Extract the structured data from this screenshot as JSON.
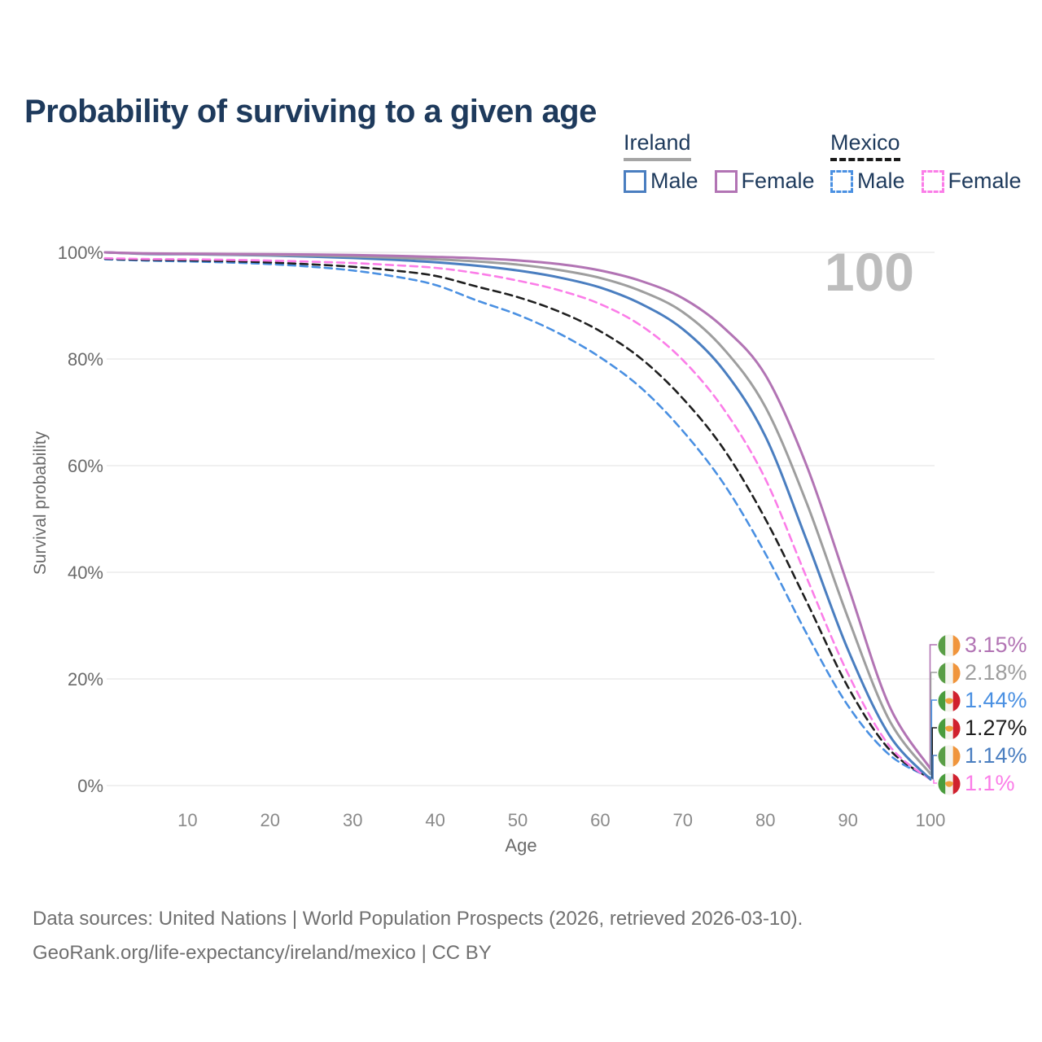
{
  "title": {
    "text": "Probability of surviving to a given age"
  },
  "watermark": {
    "text": "100"
  },
  "legend": {
    "groups": [
      {
        "label": "Ireland",
        "line_style": "solid",
        "underline_color": "#a5a5a5",
        "items": [
          {
            "label": "Male",
            "color": "#4a7ec0"
          },
          {
            "label": "Female",
            "color": "#b274b4"
          }
        ]
      },
      {
        "label": "Mexico",
        "line_style": "dashed",
        "underline_color": "#1a1a1a",
        "items": [
          {
            "label": "Male",
            "color": "#4a90e2"
          },
          {
            "label": "Female",
            "color": "#fb7de8"
          }
        ]
      }
    ]
  },
  "chart_data": {
    "type": "line",
    "title": "Probability of surviving to a given age",
    "xlabel": "Age",
    "ylabel": "Survival probability",
    "xlim": [
      0,
      100
    ],
    "ylim": [
      0,
      100
    ],
    "grid": "horizontal",
    "grid_color": "#e6e6e6",
    "x_ticks": [
      10,
      20,
      30,
      40,
      50,
      60,
      70,
      80,
      90,
      100
    ],
    "y_ticks": [
      {
        "value": 0,
        "label": "0%"
      },
      {
        "value": 20,
        "label": "20%"
      },
      {
        "value": 40,
        "label": "40%"
      },
      {
        "value": 60,
        "label": "60%"
      },
      {
        "value": 80,
        "label": "80%"
      },
      {
        "value": 100,
        "label": "100%"
      }
    ],
    "x": [
      0,
      5,
      10,
      15,
      20,
      25,
      30,
      35,
      40,
      45,
      50,
      55,
      60,
      65,
      70,
      75,
      80,
      85,
      90,
      95,
      100
    ],
    "series": [
      {
        "id": "mexico-male",
        "name": "Mexico Male",
        "country": "Mexico",
        "sex": "Male",
        "style": "dashed",
        "color": "#4a90e2",
        "end_value": 1.44,
        "end_label": "1.44%",
        "values": [
          98.7,
          98.45,
          98.3,
          98.1,
          97.8,
          97.3,
          96.6,
          95.5,
          93.9,
          91.0,
          88.3,
          84.8,
          80.3,
          74.5,
          66.5,
          56.5,
          43.5,
          28.5,
          15.0,
          5.8,
          1.44
        ]
      },
      {
        "id": "mexico-both",
        "name": "Mexico Both sexes",
        "country": "Mexico",
        "sex": "Both",
        "style": "dashed",
        "color": "#1f1f1f",
        "end_value": 1.27,
        "end_label": "1.27%",
        "values": [
          98.8,
          98.6,
          98.5,
          98.35,
          98.1,
          97.75,
          97.3,
          96.6,
          95.6,
          93.6,
          91.6,
          88.9,
          85.2,
          80.0,
          72.6,
          63.0,
          50.0,
          34.5,
          18.5,
          6.8,
          1.27
        ]
      },
      {
        "id": "mexico-female",
        "name": "Mexico Female",
        "country": "Mexico",
        "sex": "Female",
        "style": "dashed",
        "color": "#fb7de8",
        "end_value": 1.1,
        "end_label": "1.1%",
        "values": [
          98.9,
          98.75,
          98.7,
          98.6,
          98.45,
          98.25,
          98.0,
          97.6,
          97.1,
          96.1,
          94.7,
          92.9,
          90.3,
          86.2,
          79.8,
          70.5,
          57.5,
          39.0,
          21.0,
          7.5,
          1.1
        ]
      },
      {
        "id": "ireland-male",
        "name": "Ireland Male",
        "country": "Ireland",
        "sex": "Male",
        "style": "solid",
        "color": "#4a7ec0",
        "end_value": 1.14,
        "end_label": "1.14%",
        "values": [
          100,
          99.7,
          99.65,
          99.55,
          99.4,
          99.2,
          98.95,
          98.6,
          98.15,
          97.5,
          96.6,
          95.3,
          93.4,
          90.3,
          85.6,
          77.8,
          65.5,
          46.0,
          25.5,
          9.5,
          1.14
        ]
      },
      {
        "id": "ireland-both",
        "name": "Ireland Both sexes",
        "country": "Ireland",
        "sex": "Both",
        "style": "solid",
        "color": "#9e9e9e",
        "end_value": 2.18,
        "end_label": "2.18%",
        "values": [
          100,
          99.75,
          99.7,
          99.6,
          99.5,
          99.4,
          99.25,
          99.0,
          98.7,
          98.3,
          97.7,
          96.7,
          95.2,
          92.7,
          88.8,
          81.8,
          71.0,
          53.0,
          31.5,
          12.3,
          2.18
        ]
      },
      {
        "id": "ireland-female",
        "name": "Ireland Female",
        "country": "Ireland",
        "sex": "Female",
        "style": "solid",
        "color": "#b274b4",
        "end_value": 3.15,
        "end_label": "3.15%",
        "values": [
          100,
          99.8,
          99.75,
          99.7,
          99.65,
          99.6,
          99.5,
          99.35,
          99.15,
          98.9,
          98.5,
          97.8,
          96.6,
          94.6,
          91.4,
          85.8,
          77.0,
          60.0,
          37.5,
          15.0,
          3.15
        ]
      }
    ],
    "legend_position": "top-right"
  },
  "end_labels": [
    {
      "flag": "ireland",
      "value": "3.15%",
      "end_value": 3.15,
      "color": "#b274b4",
      "series": "Ireland Female"
    },
    {
      "flag": "ireland",
      "value": "2.18%",
      "end_value": 2.18,
      "color": "#9e9e9e",
      "series": "Ireland Both sexes"
    },
    {
      "flag": "mexico",
      "value": "1.44%",
      "end_value": 1.44,
      "color": "#4a90e2",
      "series": "Mexico Male"
    },
    {
      "flag": "mexico",
      "value": "1.27%",
      "end_value": 1.27,
      "color": "#1f1f1f",
      "series": "Mexico Both sexes"
    },
    {
      "flag": "ireland",
      "value": "1.14%",
      "end_value": 1.14,
      "color": "#4a7ec0",
      "series": "Ireland Male"
    },
    {
      "flag": "mexico",
      "value": "1.1%",
      "end_value": 1.1,
      "color": "#fb7de8",
      "series": "Mexico Female"
    }
  ],
  "flags": {
    "ireland": {
      "stripes": [
        "#5a9e46",
        "#f5f4ef",
        "#f0953c"
      ]
    },
    "mexico": {
      "stripes": [
        "#4a9c3d",
        "#f5f4ef",
        "#d0212e"
      ],
      "emblem": "#f0a03c"
    }
  },
  "footer": {
    "line1": "Data sources: United Nations | World Population Prospects (2026, retrieved 2026-03-10).",
    "line2": "GeoRank.org/life-expectancy/ireland/mexico | CC BY"
  }
}
